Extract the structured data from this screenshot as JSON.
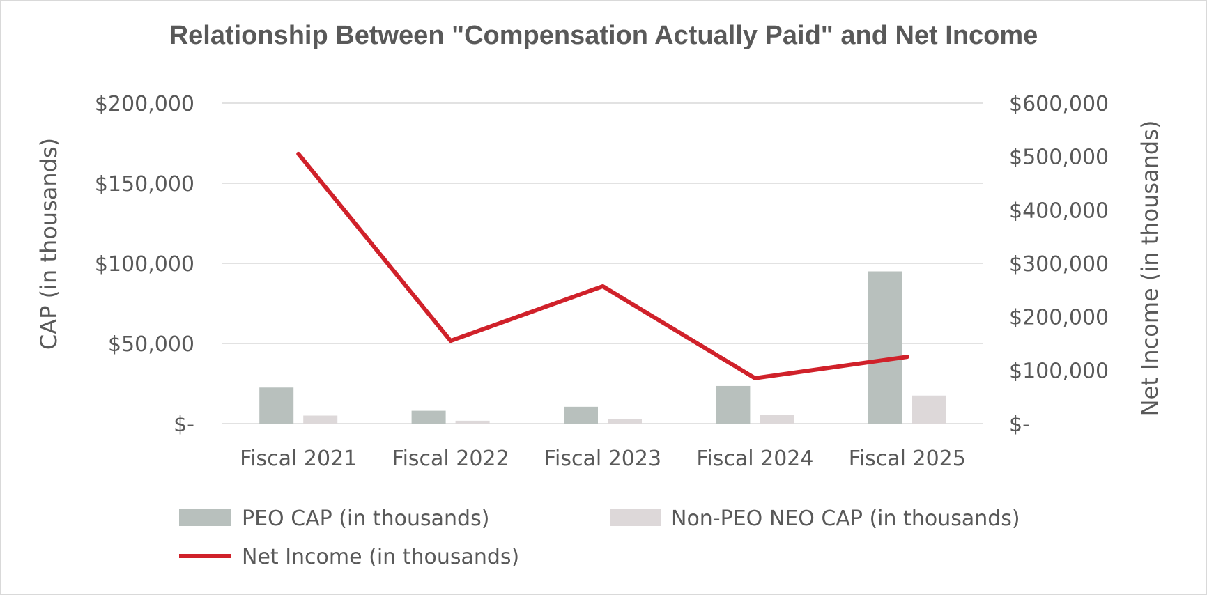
{
  "chart_data": {
    "type": "bar",
    "title": "Relationship Between \"Compensation Actually Paid\" and Net Income",
    "categories": [
      "Fiscal 2021",
      "Fiscal 2022",
      "Fiscal 2023",
      "Fiscal 2024",
      "Fiscal 2025"
    ],
    "series": [
      {
        "name": "PEO CAP (in thousands)",
        "type": "bar",
        "axis": "left",
        "color": "#b8c0bd",
        "values": [
          22500,
          8000,
          10500,
          23500,
          95000
        ]
      },
      {
        "name": "Non-PEO NEO CAP (in thousands)",
        "type": "bar",
        "axis": "left",
        "color": "#ddd8d9",
        "values": [
          5000,
          1800,
          2700,
          5500,
          17500
        ]
      },
      {
        "name": "Net Income (in thousands)",
        "type": "line",
        "axis": "right",
        "color": "#d0212a",
        "values": [
          505000,
          155000,
          257000,
          85000,
          125000
        ]
      }
    ],
    "y_left": {
      "label": "CAP (in thousands)",
      "range": [
        0,
        200000
      ],
      "ticks": [
        0,
        50000,
        100000,
        150000,
        200000
      ],
      "tick_labels": [
        "$-",
        "$50,000",
        "$100,000",
        "$150,000",
        "$200,000"
      ]
    },
    "y_right": {
      "label": "Net Income (in thousands)",
      "range": [
        0,
        600000
      ],
      "ticks": [
        0,
        100000,
        200000,
        300000,
        400000,
        500000,
        600000
      ],
      "tick_labels": [
        "$-",
        "$100,000",
        "$200,000",
        "$300,000",
        "$400,000",
        "$500,000",
        "$600,000"
      ]
    },
    "grid": true,
    "legend_position": "bottom"
  }
}
